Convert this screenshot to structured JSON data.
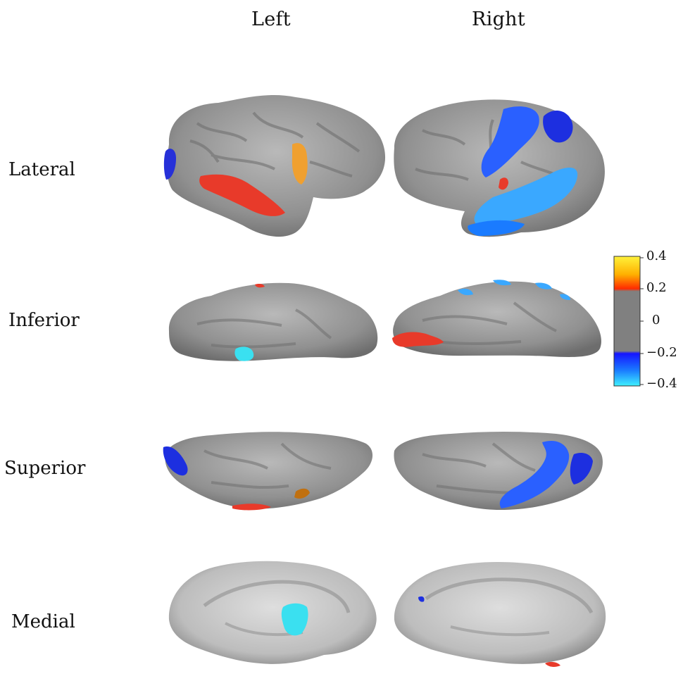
{
  "columns": {
    "left": "Left",
    "right": "Right"
  },
  "rows": {
    "lateral": "Lateral",
    "inferior": "Inferior",
    "superior": "Superior",
    "medial": "Medial"
  },
  "colorbar": {
    "ticks": [
      "0.4",
      "0.2",
      "0",
      "−0.2",
      "−0.4"
    ],
    "colors": {
      "top": "#fff23a",
      "upper_mid": "#ff8a00",
      "pos": "#ff2a00",
      "neutral": "#808080",
      "neg": "#1515ff",
      "lower_mid": "#1a7bff",
      "bottom": "#3ff0ff"
    }
  },
  "surface_colors": {
    "cortex": "#8f8f8f",
    "cortex_light": "#b8b8b8",
    "medial_wall": "#d0d0d0",
    "red": "#e83a2a",
    "orange": "#f0a030",
    "blue": "#2a60ff",
    "dark_blue": "#1d2fe0",
    "light_blue": "#3aa8ff",
    "cyan": "#3ae0f0"
  }
}
